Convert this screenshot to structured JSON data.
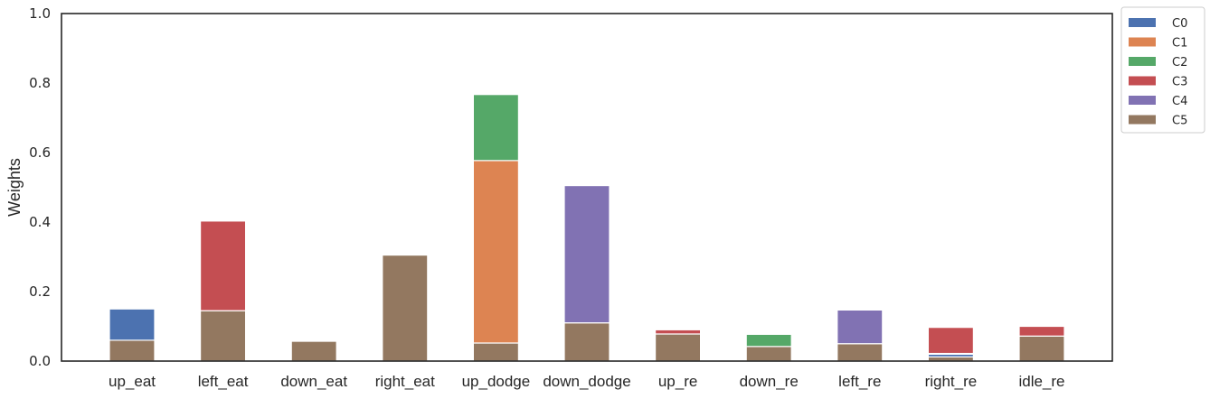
{
  "chart_data": {
    "type": "bar",
    "stacked": true,
    "categories": [
      "up_eat",
      "left_eat",
      "down_eat",
      "right_eat",
      "up_dodge",
      "down_dodge",
      "up_re",
      "down_re",
      "left_re",
      "right_re",
      "idle_re"
    ],
    "ylabel": "Weights",
    "xlabel": "",
    "ylim": [
      0,
      1.0
    ],
    "yticks": [
      "0.0",
      "0.2",
      "0.4",
      "0.6",
      "0.8",
      "1.0"
    ],
    "grid": false,
    "legend_position": "outside-top-right",
    "series": [
      {
        "name": "C5",
        "color": "#937860",
        "values": [
          0.06,
          0.145,
          0.057,
          0.305,
          0.052,
          0.11,
          0.078,
          0.042,
          0.05,
          0.012,
          0.072
        ]
      },
      {
        "name": "C0",
        "color": "#4c72b0",
        "values": [
          0.09,
          0.0,
          0.0,
          0.0,
          0.0,
          0.0,
          0.0,
          0.0,
          0.0,
          0.008,
          0.0
        ]
      },
      {
        "name": "C1",
        "color": "#dd8452",
        "values": [
          0.0,
          0.0,
          0.0,
          0.0,
          0.525,
          0.0,
          0.0,
          0.0,
          0.0,
          0.0,
          0.0
        ]
      },
      {
        "name": "C2",
        "color": "#55a868",
        "values": [
          0.0,
          0.0,
          0.0,
          0.0,
          0.19,
          0.0,
          0.0,
          0.035,
          0.0,
          0.002,
          0.0
        ]
      },
      {
        "name": "C3",
        "color": "#c44e52",
        "values": [
          0.0,
          0.258,
          0.0,
          0.0,
          0.0,
          0.0,
          0.012,
          0.0,
          0.0,
          0.075,
          0.028
        ]
      },
      {
        "name": "C4",
        "color": "#8172b3",
        "values": [
          0.0,
          0.0,
          0.0,
          0.0,
          0.0,
          0.395,
          0.0,
          0.0,
          0.097,
          0.0,
          0.0
        ]
      }
    ],
    "legend_order": [
      "C0",
      "C1",
      "C2",
      "C3",
      "C4",
      "C5"
    ]
  }
}
